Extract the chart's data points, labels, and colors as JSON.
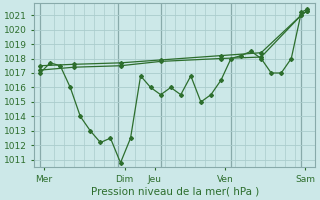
{
  "bg_color": "#cce8e8",
  "grid_color": "#aacccc",
  "line_color": "#2d6e2d",
  "marker_color": "#2d6e2d",
  "xlabel": "Pression niveau de la mer( hPa )",
  "ylim": [
    1010.5,
    1021.8
  ],
  "yticks": [
    1011,
    1012,
    1013,
    1014,
    1015,
    1016,
    1017,
    1018,
    1019,
    1020,
    1021
  ],
  "xlim": [
    0,
    14.0
  ],
  "xtick_labels": [
    "Mer",
    "Dim",
    "Jeu",
    "Ven",
    "Sam"
  ],
  "xtick_positions": [
    0.5,
    4.5,
    6.0,
    9.5,
    13.5
  ],
  "vline_positions": [
    0.3,
    4.2,
    6.3,
    9.8,
    13.3
  ],
  "series1_x": [
    0.3,
    0.8,
    1.3,
    1.8,
    2.3,
    2.8,
    3.3,
    3.8,
    4.3,
    4.8,
    5.3,
    5.8,
    6.3,
    6.8,
    7.3,
    7.8,
    8.3,
    8.8,
    9.3,
    9.8,
    10.3,
    10.8,
    11.3,
    11.8,
    12.3,
    12.8,
    13.3,
    13.6
  ],
  "series1_y": [
    1017.0,
    1017.7,
    1017.5,
    1016.0,
    1014.0,
    1013.0,
    1012.2,
    1012.5,
    1010.8,
    1012.5,
    1016.8,
    1016.0,
    1015.5,
    1016.0,
    1015.5,
    1016.8,
    1015.0,
    1015.5,
    1016.5,
    1018.0,
    1018.2,
    1018.5,
    1018.0,
    1017.0,
    1017.0,
    1018.0,
    1021.2,
    1021.4
  ],
  "series2_x": [
    0.3,
    2.0,
    4.3,
    6.3,
    9.3,
    11.3,
    13.3,
    13.6
  ],
  "series2_y": [
    1017.5,
    1017.6,
    1017.7,
    1017.9,
    1018.2,
    1018.4,
    1021.0,
    1021.3
  ],
  "series3_x": [
    0.3,
    2.0,
    4.3,
    6.3,
    9.3,
    11.3,
    13.3,
    13.6
  ],
  "series3_y": [
    1017.2,
    1017.4,
    1017.5,
    1017.8,
    1018.0,
    1018.1,
    1021.0,
    1021.3
  ],
  "xlabel_fontsize": 7.5,
  "ylabel_fontsize": 6.5,
  "xtick_fontsize": 6.5,
  "title_fontsize": 7.5
}
